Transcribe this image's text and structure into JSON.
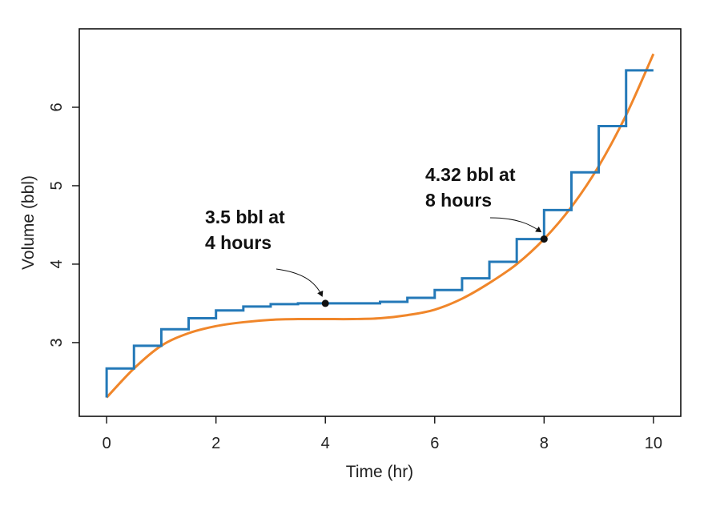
{
  "chart_data": {
    "type": "line",
    "title": "",
    "xlabel": "Time (hr)",
    "ylabel": "Volume (bbl)",
    "xlim": [
      -0.5,
      10.5
    ],
    "ylim": [
      2.06,
      7.0
    ],
    "xticks": [
      0,
      2,
      4,
      6,
      8,
      10
    ],
    "yticks": [
      3,
      4,
      5,
      6
    ],
    "grid": false,
    "legend": "none",
    "series": [
      {
        "style": "step",
        "color": "#2479b8",
        "x": [
          0,
          0.5,
          1,
          1.5,
          2,
          2.5,
          3,
          3.5,
          4,
          4.5,
          5,
          5.5,
          6,
          6.5,
          7,
          7.5,
          8,
          8.5,
          9,
          9.5,
          10
        ],
        "values": [
          2.67,
          2.96,
          3.17,
          3.31,
          3.41,
          3.46,
          3.49,
          3.5,
          3.5,
          3.5,
          3.52,
          3.57,
          3.67,
          3.82,
          4.03,
          4.32,
          4.69,
          5.17,
          5.76,
          6.47,
          6.47
        ]
      },
      {
        "style": "curve",
        "color": "#f0862a",
        "x": [
          0,
          0.5,
          1,
          1.5,
          2,
          2.5,
          3,
          3.5,
          4,
          4.5,
          5,
          5.5,
          6,
          6.5,
          7,
          7.5,
          8,
          8.5,
          9,
          9.5,
          10
        ],
        "values": [
          2.3,
          2.67,
          2.96,
          3.12,
          3.21,
          3.26,
          3.29,
          3.3,
          3.3,
          3.3,
          3.31,
          3.35,
          3.42,
          3.56,
          3.76,
          4.0,
          4.32,
          4.73,
          5.25,
          5.9,
          6.68
        ]
      }
    ],
    "points": [
      {
        "x": 4,
        "y": 3.5
      },
      {
        "x": 8,
        "y": 4.32
      }
    ],
    "annotations": [
      {
        "line1": "3.5 bbl at",
        "line2": "4 hours",
        "x": 4,
        "y": 3.5
      },
      {
        "line1": "4.32 bbl at",
        "line2": "8 hours",
        "x": 8,
        "y": 4.32
      }
    ]
  }
}
